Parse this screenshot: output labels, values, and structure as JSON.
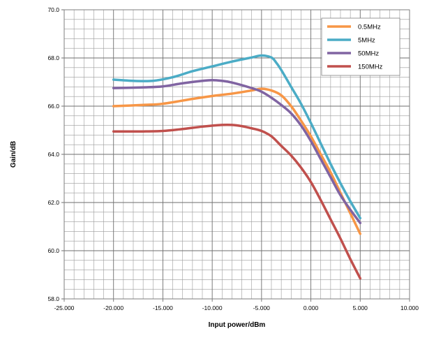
{
  "chart_data": {
    "type": "line",
    "xlabel": "Input power/dBm",
    "ylabel": "Gain/dB",
    "xlim": [
      -25,
      10
    ],
    "ylim": [
      58,
      70
    ],
    "x_ticks": [
      -25,
      -20,
      -15,
      -10,
      -5,
      0,
      5,
      10
    ],
    "x_tick_labels": [
      "-25.000",
      "-20.000",
      "-15.000",
      "-10.000",
      "-5.000",
      "0.000",
      "5.000",
      "10.000"
    ],
    "y_ticks": [
      58,
      60,
      62,
      64,
      66,
      68,
      70
    ],
    "y_tick_labels": [
      "58.0",
      "60.0",
      "62.0",
      "64.0",
      "66.0",
      "68.0",
      "70.0"
    ],
    "grid": true,
    "legend_position": "top-right",
    "series": [
      {
        "name": "0.5MHz",
        "color": "#F79646",
        "x": [
          -20,
          -17,
          -15,
          -12,
          -10,
          -8,
          -6,
          -5,
          -4,
          -3,
          -2,
          -1,
          0,
          1,
          2,
          3,
          4,
          5
        ],
        "y": [
          66.0,
          66.05,
          66.1,
          66.3,
          66.42,
          66.52,
          66.65,
          66.72,
          66.65,
          66.45,
          66.0,
          65.4,
          64.75,
          64.0,
          63.25,
          62.4,
          61.55,
          60.7
        ]
      },
      {
        "name": "5MHz",
        "color": "#4BACC6",
        "x": [
          -20,
          -18,
          -16,
          -14,
          -12,
          -10,
          -8,
          -6,
          -5,
          -4,
          -3.5,
          -3,
          -2,
          -1,
          0,
          1,
          2,
          3,
          4,
          5
        ],
        "y": [
          67.1,
          67.05,
          67.05,
          67.2,
          67.45,
          67.65,
          67.85,
          68.02,
          68.1,
          68.02,
          67.8,
          67.5,
          66.8,
          66.1,
          65.3,
          64.45,
          63.6,
          62.8,
          62.05,
          61.35
        ]
      },
      {
        "name": "50MHz",
        "color": "#8064A2",
        "x": [
          -20,
          -17,
          -15,
          -13,
          -11,
          -10,
          -9,
          -8,
          -6,
          -5,
          -4,
          -3,
          -2,
          -1,
          0,
          1,
          2,
          3,
          4,
          5
        ],
        "y": [
          66.75,
          66.78,
          66.82,
          66.95,
          67.05,
          67.08,
          67.05,
          66.98,
          66.75,
          66.6,
          66.35,
          66.05,
          65.7,
          65.2,
          64.55,
          63.8,
          63.05,
          62.3,
          61.7,
          61.15
        ]
      },
      {
        "name": "150MHz",
        "color": "#C0504D",
        "x": [
          -20,
          -17,
          -15,
          -13,
          -11,
          -9,
          -8,
          -7,
          -6,
          -5,
          -4,
          -3,
          -2,
          -1,
          0,
          1,
          2,
          3,
          4,
          5
        ],
        "y": [
          64.95,
          64.95,
          64.97,
          65.05,
          65.15,
          65.22,
          65.22,
          65.17,
          65.08,
          64.97,
          64.75,
          64.35,
          63.95,
          63.45,
          62.85,
          62.1,
          61.3,
          60.5,
          59.65,
          58.85
        ]
      }
    ]
  }
}
